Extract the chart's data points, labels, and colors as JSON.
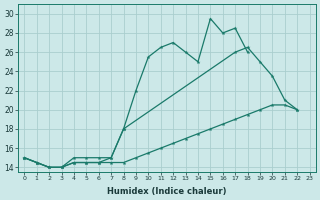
{
  "xlabel": "Humidex (Indice chaleur)",
  "background_color": "#cce8e8",
  "grid_color": "#aacece",
  "line_color": "#1a7a6a",
  "xlim": [
    -0.5,
    23.5
  ],
  "ylim": [
    13.5,
    31
  ],
  "xticks": [
    0,
    1,
    2,
    3,
    4,
    5,
    6,
    7,
    8,
    9,
    10,
    11,
    12,
    13,
    14,
    15,
    16,
    17,
    18,
    19,
    20,
    21,
    22,
    23
  ],
  "yticks": [
    14,
    16,
    18,
    20,
    22,
    24,
    26,
    28,
    30
  ],
  "series1_x": [
    0,
    1,
    2,
    3,
    4,
    5,
    6,
    7,
    8,
    9,
    10,
    11,
    12,
    13,
    14,
    15,
    16,
    17,
    18
  ],
  "series1_y": [
    15,
    14.5,
    14,
    14,
    14.5,
    14.5,
    14.5,
    15,
    18,
    22,
    25.5,
    26.5,
    27,
    26,
    25,
    29.5,
    28,
    28.5,
    26
  ],
  "series2_x": [
    0,
    1,
    2,
    3,
    4,
    5,
    6,
    7,
    8,
    17,
    18,
    19,
    20,
    21,
    22
  ],
  "series2_y": [
    15,
    14.5,
    14,
    14,
    15,
    15,
    15,
    15,
    18,
    26,
    26.5,
    25,
    23.5,
    21,
    20
  ],
  "series3_x": [
    0,
    1,
    2,
    3,
    4,
    5,
    6,
    7,
    8,
    9,
    10,
    11,
    12,
    13,
    14,
    15,
    16,
    17,
    18,
    19,
    20,
    21,
    22
  ],
  "series3_y": [
    15,
    14.5,
    14,
    14,
    14.5,
    14.5,
    14.5,
    14.5,
    14.5,
    15,
    15.5,
    16,
    16.5,
    17,
    17.5,
    18,
    18.5,
    19,
    19.5,
    20,
    20.5,
    20.5,
    20
  ]
}
